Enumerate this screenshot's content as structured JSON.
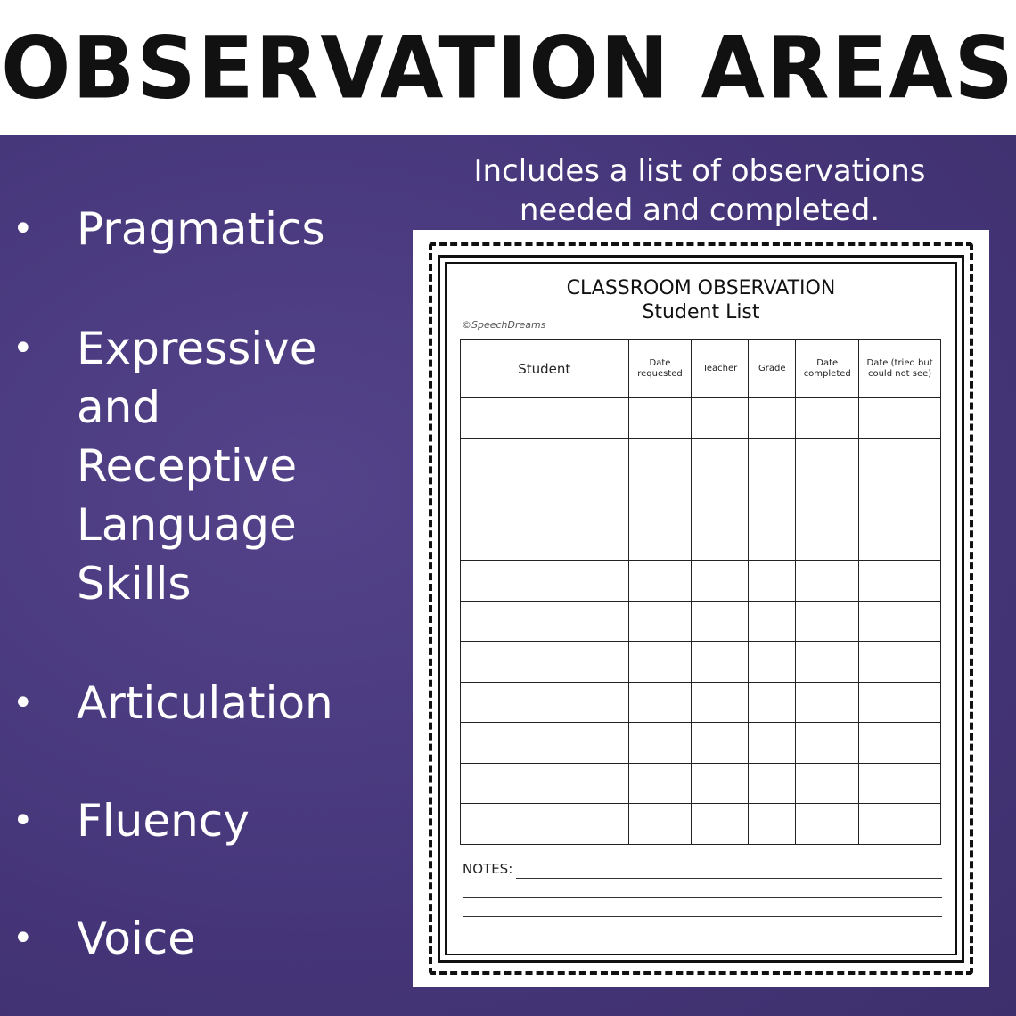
{
  "header": {
    "title": "Observation Areas"
  },
  "areas": [
    {
      "label": "Pragmatics"
    },
    {
      "label": "Expressive\nand\nReceptive\nLanguage\nSkills"
    },
    {
      "label": "Articulation"
    },
    {
      "label": "Fluency"
    },
    {
      "label": "Voice"
    }
  ],
  "caption": "Includes a list of observations needed and completed.",
  "worksheet": {
    "title": "CLASSROOM OBSERVATION",
    "subtitle": "Student List",
    "watermark": "©SpeechDreams",
    "columns": [
      "Student",
      "Date requested",
      "Teacher",
      "Grade",
      "Date completed",
      "Date (tried but could not see)"
    ],
    "row_count": 11,
    "notes_label": "NOTES:"
  },
  "colors": {
    "background": "#46367a",
    "text_on_bg": "#ffffff"
  }
}
